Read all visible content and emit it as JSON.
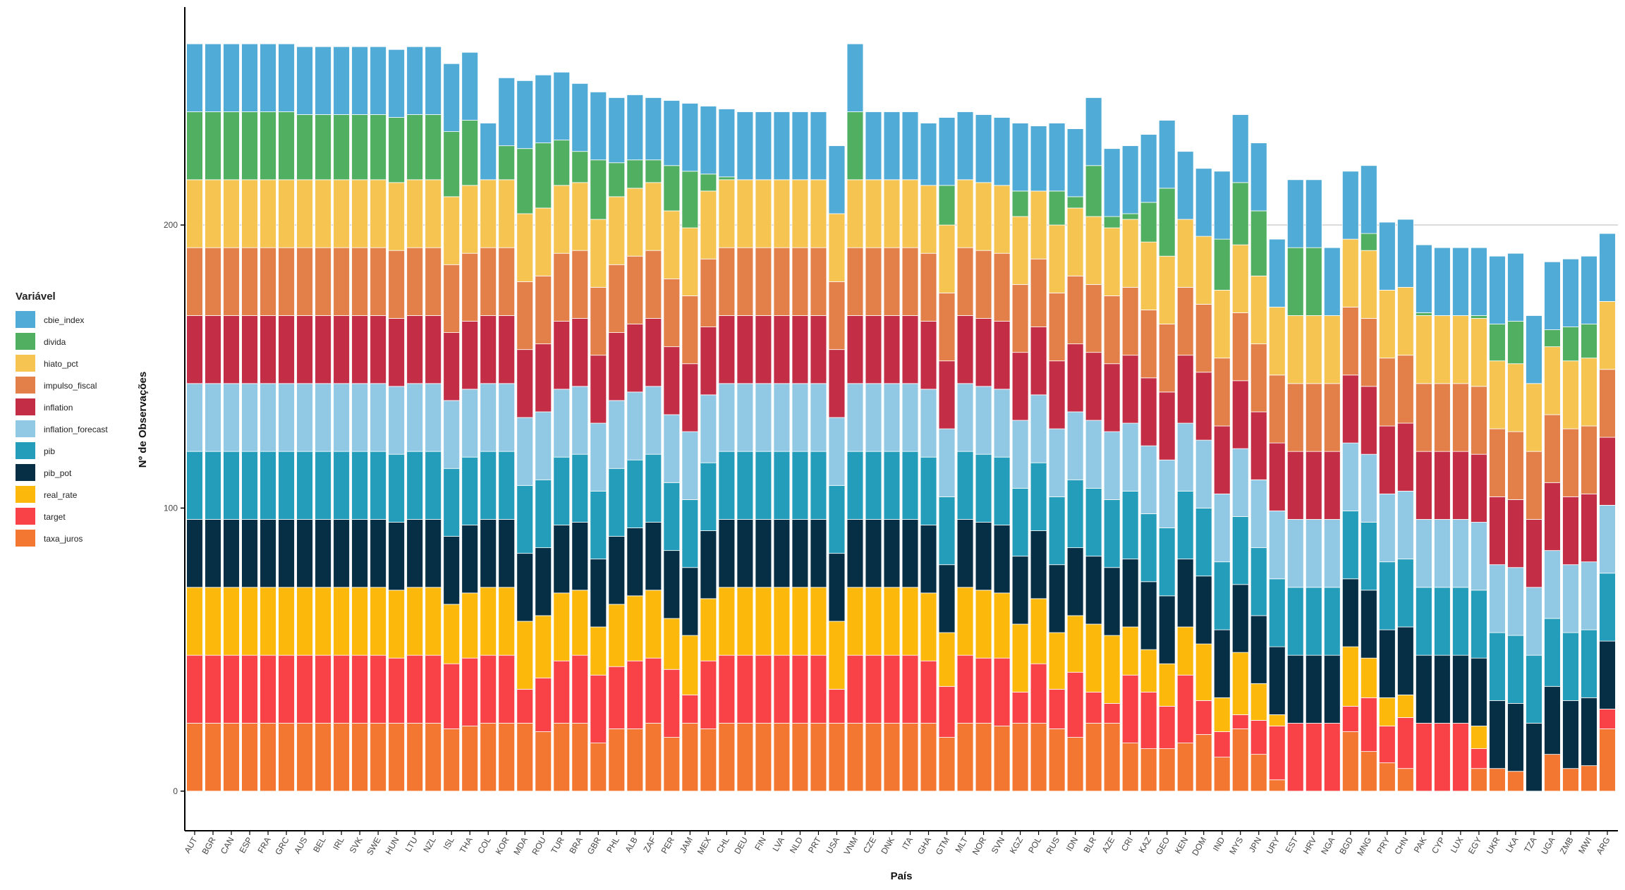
{
  "chart_data": {
    "type": "bar",
    "stacked": true,
    "xlabel": "País",
    "ylabel": "Nº de Observações",
    "ylim": [
      -14,
      277
    ],
    "yticks": [
      0,
      100,
      200
    ],
    "grid": "horizontal line at 200",
    "legend": {
      "title": "Variável",
      "placement": "left",
      "items": [
        {
          "name": "cbie_index",
          "color": "#50ABD6"
        },
        {
          "name": "divida",
          "color": "#50AF60"
        },
        {
          "name": "hiato_pct",
          "color": "#F5C451"
        },
        {
          "name": "impulso_fiscal",
          "color": "#E38049"
        },
        {
          "name": "inflation",
          "color": "#C42D46"
        },
        {
          "name": "inflation_forecast",
          "color": "#91C8E4"
        },
        {
          "name": "pib",
          "color": "#249DBA"
        },
        {
          "name": "pib_pot",
          "color": "#062F46"
        },
        {
          "name": "real_rate",
          "color": "#FDB80C"
        },
        {
          "name": "target",
          "color": "#F94248"
        },
        {
          "name": "taxa_juros",
          "color": "#F37731"
        }
      ]
    },
    "categories": [
      "AUT",
      "BGR",
      "CAN",
      "ESP",
      "FRA",
      "GRC",
      "AUS",
      "BEL",
      "IRL",
      "SVK",
      "SWE",
      "HUN",
      "LTU",
      "NZL",
      "ISL",
      "THA",
      "COL",
      "KOR",
      "MDA",
      "ROU",
      "TUR",
      "BRA",
      "GBR",
      "PHL",
      "ALB",
      "ZAF",
      "PER",
      "JAM",
      "MEX",
      "CHL",
      "DEU",
      "FIN",
      "LVA",
      "NLD",
      "PRT",
      "USA",
      "VNM",
      "CZE",
      "DNK",
      "ITA",
      "GHA",
      "GTM",
      "MLT",
      "NOR",
      "SVN",
      "KGZ",
      "POL",
      "RUS",
      "IDN",
      "BLR",
      "AZE",
      "CRI",
      "KAZ",
      "GEO",
      "KEN",
      "DOM",
      "IND",
      "MYS",
      "JPN",
      "URY",
      "EST",
      "HRV",
      "NGA",
      "BGD",
      "MNG",
      "PRY",
      "CHN",
      "PAK",
      "CYP",
      "LUX",
      "EGY",
      "UKR",
      "LKA",
      "TZA",
      "UGA",
      "ZMB",
      "MWI",
      "ARG"
    ],
    "series": [
      {
        "name": "taxa_juros",
        "values": [
          24,
          24,
          24,
          24,
          24,
          24,
          24,
          24,
          24,
          24,
          24,
          24,
          24,
          24,
          22,
          23,
          24,
          24,
          24,
          21,
          24,
          24,
          17,
          22,
          22,
          24,
          19,
          24,
          22,
          24,
          24,
          24,
          24,
          24,
          24,
          24,
          24,
          24,
          24,
          24,
          24,
          19,
          24,
          24,
          23,
          24,
          24,
          22,
          19,
          24,
          24,
          17,
          15,
          15,
          17,
          20,
          12,
          22,
          13,
          4,
          0,
          0,
          0,
          21,
          14,
          10,
          8,
          0,
          0,
          0,
          8,
          8,
          7,
          0,
          13,
          8,
          9,
          22
        ]
      },
      {
        "name": "target",
        "values": [
          24,
          24,
          24,
          24,
          24,
          24,
          24,
          24,
          24,
          24,
          24,
          23,
          24,
          24,
          23,
          24,
          24,
          24,
          12,
          19,
          22,
          24,
          24,
          22,
          24,
          23,
          24,
          10,
          24,
          24,
          24,
          24,
          24,
          24,
          24,
          12,
          24,
          24,
          24,
          24,
          22,
          18,
          24,
          23,
          24,
          11,
          21,
          14,
          23,
          11,
          7,
          24,
          20,
          15,
          24,
          12,
          9,
          5,
          12,
          19,
          24,
          24,
          24,
          9,
          19,
          13,
          18,
          24,
          24,
          24,
          7,
          0,
          0,
          0,
          0,
          0,
          0,
          7
        ]
      },
      {
        "name": "real_rate",
        "values": [
          24,
          24,
          24,
          24,
          24,
          24,
          24,
          24,
          24,
          24,
          24,
          24,
          24,
          24,
          21,
          23,
          24,
          24,
          24,
          22,
          24,
          23,
          17,
          22,
          23,
          24,
          18,
          21,
          22,
          24,
          24,
          24,
          24,
          24,
          24,
          24,
          24,
          24,
          24,
          24,
          24,
          19,
          24,
          24,
          23,
          24,
          23,
          20,
          20,
          24,
          24,
          17,
          15,
          15,
          17,
          20,
          12,
          22,
          13,
          4,
          0,
          0,
          0,
          21,
          14,
          10,
          8,
          0,
          0,
          0,
          8,
          0,
          0,
          0,
          0,
          0,
          0,
          0
        ]
      },
      {
        "name": "pib_pot",
        "values": [
          24,
          24,
          24,
          24,
          24,
          24,
          24,
          24,
          24,
          24,
          24,
          24,
          24,
          24,
          24,
          24,
          24,
          24,
          24,
          24,
          24,
          24,
          24,
          24,
          24,
          24,
          24,
          24,
          24,
          24,
          24,
          24,
          24,
          24,
          24,
          24,
          24,
          24,
          24,
          24,
          24,
          24,
          24,
          24,
          24,
          24,
          24,
          24,
          24,
          24,
          24,
          24,
          24,
          24,
          24,
          24,
          24,
          24,
          24,
          24,
          24,
          24,
          24,
          24,
          24,
          24,
          24,
          24,
          24,
          24,
          24,
          24,
          24,
          24,
          24,
          24,
          24,
          24
        ]
      },
      {
        "name": "pib",
        "values": [
          24,
          24,
          24,
          24,
          24,
          24,
          24,
          24,
          24,
          24,
          24,
          24,
          24,
          24,
          24,
          24,
          24,
          24,
          24,
          24,
          24,
          24,
          24,
          24,
          24,
          24,
          24,
          24,
          24,
          24,
          24,
          24,
          24,
          24,
          24,
          24,
          24,
          24,
          24,
          24,
          24,
          24,
          24,
          24,
          24,
          24,
          24,
          24,
          24,
          24,
          24,
          24,
          24,
          24,
          24,
          24,
          24,
          24,
          24,
          24,
          24,
          24,
          24,
          24,
          24,
          24,
          24,
          24,
          24,
          24,
          24,
          24,
          24,
          24,
          24,
          24,
          24,
          24
        ]
      },
      {
        "name": "inflation_forecast",
        "values": [
          24,
          24,
          24,
          24,
          24,
          24,
          24,
          24,
          24,
          24,
          24,
          24,
          24,
          24,
          24,
          24,
          24,
          24,
          24,
          24,
          24,
          24,
          24,
          24,
          24,
          24,
          24,
          24,
          24,
          24,
          24,
          24,
          24,
          24,
          24,
          24,
          24,
          24,
          24,
          24,
          24,
          24,
          24,
          24,
          24,
          24,
          24,
          24,
          24,
          24,
          24,
          24,
          24,
          24,
          24,
          24,
          24,
          24,
          24,
          24,
          24,
          24,
          24,
          24,
          24,
          24,
          24,
          24,
          24,
          24,
          24,
          24,
          24,
          24,
          24,
          24,
          24,
          24
        ]
      },
      {
        "name": "inflation",
        "values": [
          24,
          24,
          24,
          24,
          24,
          24,
          24,
          24,
          24,
          24,
          24,
          24,
          24,
          24,
          24,
          24,
          24,
          24,
          24,
          24,
          24,
          24,
          24,
          24,
          24,
          24,
          24,
          24,
          24,
          24,
          24,
          24,
          24,
          24,
          24,
          24,
          24,
          24,
          24,
          24,
          24,
          24,
          24,
          24,
          24,
          24,
          24,
          24,
          24,
          24,
          24,
          24,
          24,
          24,
          24,
          24,
          24,
          24,
          24,
          24,
          24,
          24,
          24,
          24,
          24,
          24,
          24,
          24,
          24,
          24,
          24,
          24,
          24,
          24,
          24,
          24,
          24,
          24
        ]
      },
      {
        "name": "impulso_fiscal",
        "values": [
          24,
          24,
          24,
          24,
          24,
          24,
          24,
          24,
          24,
          24,
          24,
          24,
          24,
          24,
          24,
          24,
          24,
          24,
          24,
          24,
          24,
          24,
          24,
          24,
          24,
          24,
          24,
          24,
          24,
          24,
          24,
          24,
          24,
          24,
          24,
          24,
          24,
          24,
          24,
          24,
          24,
          24,
          24,
          24,
          24,
          24,
          24,
          24,
          24,
          24,
          24,
          24,
          24,
          24,
          24,
          24,
          24,
          24,
          24,
          24,
          24,
          24,
          24,
          24,
          24,
          24,
          24,
          24,
          24,
          24,
          24,
          24,
          24,
          24,
          24,
          24,
          24,
          24
        ]
      },
      {
        "name": "hiato_pct",
        "values": [
          24,
          24,
          24,
          24,
          24,
          24,
          24,
          24,
          24,
          24,
          24,
          24,
          24,
          24,
          24,
          24,
          24,
          24,
          24,
          24,
          24,
          24,
          24,
          24,
          24,
          24,
          24,
          24,
          24,
          24,
          24,
          24,
          24,
          24,
          24,
          24,
          24,
          24,
          24,
          24,
          24,
          24,
          24,
          24,
          24,
          24,
          24,
          24,
          24,
          24,
          24,
          24,
          24,
          24,
          24,
          24,
          24,
          24,
          24,
          24,
          24,
          24,
          24,
          24,
          24,
          24,
          24,
          24,
          24,
          24,
          24,
          24,
          24,
          24,
          24,
          24,
          24,
          24
        ]
      },
      {
        "name": "divida",
        "values": [
          24,
          24,
          24,
          24,
          24,
          24,
          23,
          23,
          23,
          23,
          23,
          23,
          23,
          23,
          23,
          23,
          0,
          12,
          23,
          23,
          16,
          11,
          21,
          12,
          10,
          8,
          16,
          20,
          6,
          1,
          0,
          0,
          0,
          0,
          0,
          0,
          24,
          0,
          0,
          0,
          0,
          14,
          0,
          0,
          0,
          9,
          0,
          12,
          4,
          18,
          4,
          2,
          14,
          24,
          0,
          0,
          18,
          22,
          23,
          0,
          24,
          24,
          0,
          0,
          6,
          0,
          0,
          1,
          0,
          0,
          1,
          13,
          15,
          0,
          6,
          12,
          12,
          0
        ]
      },
      {
        "name": "cbie_index",
        "values": [
          24,
          24,
          24,
          24,
          24,
          24,
          24,
          24,
          24,
          24,
          24,
          24,
          24,
          24,
          24,
          24,
          20,
          24,
          24,
          24,
          24,
          24,
          24,
          23,
          23,
          22,
          23,
          24,
          24,
          24,
          24,
          24,
          24,
          24,
          24,
          24,
          24,
          24,
          24,
          24,
          22,
          24,
          24,
          24,
          24,
          24,
          23,
          24,
          24,
          24,
          24,
          24,
          24,
          24,
          24,
          24,
          24,
          24,
          24,
          24,
          24,
          24,
          24,
          24,
          24,
          24,
          24,
          24,
          24,
          24,
          24,
          24,
          24,
          24,
          24,
          24,
          24,
          24
        ]
      }
    ]
  }
}
